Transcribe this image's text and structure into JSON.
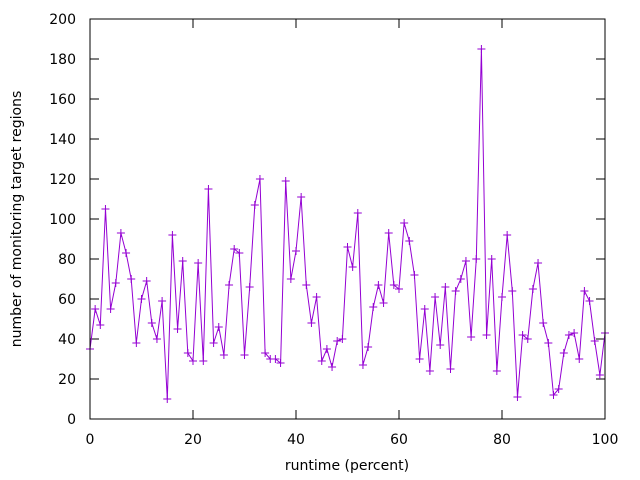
{
  "chart_data": {
    "type": "line",
    "title": "",
    "xlabel": "runtime (percent)",
    "ylabel": "number of monitoring target regions",
    "xlim": [
      0,
      100
    ],
    "ylim": [
      0,
      200
    ],
    "xticks": [
      0,
      20,
      40,
      60,
      80,
      100
    ],
    "yticks": [
      0,
      20,
      40,
      60,
      80,
      100,
      120,
      140,
      160,
      180,
      200
    ],
    "grid": false,
    "legend": "none",
    "marker": "plus",
    "color": "#9400d3",
    "series": [
      {
        "x": [
          0,
          1,
          2,
          3,
          4,
          5,
          6,
          7,
          8,
          9,
          10,
          11,
          12,
          13,
          14,
          15,
          16,
          17,
          18,
          19,
          20,
          21,
          22,
          23,
          24,
          25,
          26,
          27,
          28,
          29,
          30,
          31,
          32,
          33,
          34,
          35,
          36,
          37,
          38,
          39,
          40,
          41,
          42,
          43,
          44,
          45,
          46,
          47,
          48,
          49,
          50,
          51,
          52,
          53,
          54,
          55,
          56,
          57,
          58,
          59,
          60,
          61,
          62,
          63,
          64,
          65,
          66,
          67,
          68,
          69,
          70,
          71,
          72,
          73,
          74,
          75,
          76,
          77,
          78,
          79,
          80,
          81,
          82,
          83,
          84,
          85,
          86,
          87,
          88,
          89,
          90,
          91,
          92,
          93,
          94,
          95,
          96,
          97,
          98,
          99,
          100
        ],
        "y": [
          35,
          55,
          47,
          105,
          55,
          68,
          93,
          83,
          70,
          38,
          60,
          69,
          48,
          40,
          59,
          10,
          92,
          45,
          79,
          33,
          29,
          78,
          29,
          115,
          38,
          46,
          32,
          67,
          85,
          83,
          32,
          66,
          107,
          120,
          33,
          30,
          30,
          28,
          119,
          70,
          84,
          111,
          67,
          48,
          61,
          29,
          35,
          26,
          39,
          40,
          86,
          76,
          103,
          27,
          36,
          56,
          67,
          58,
          93,
          67,
          65,
          98,
          89,
          72,
          30,
          55,
          24,
          61,
          37,
          66,
          25,
          64,
          70,
          79,
          41,
          80,
          185,
          42,
          80,
          24,
          61,
          92,
          64,
          11,
          42,
          40,
          65,
          78,
          48,
          38,
          12,
          15,
          33,
          42,
          43,
          30,
          64,
          59,
          39,
          22,
          43
        ]
      }
    ]
  }
}
